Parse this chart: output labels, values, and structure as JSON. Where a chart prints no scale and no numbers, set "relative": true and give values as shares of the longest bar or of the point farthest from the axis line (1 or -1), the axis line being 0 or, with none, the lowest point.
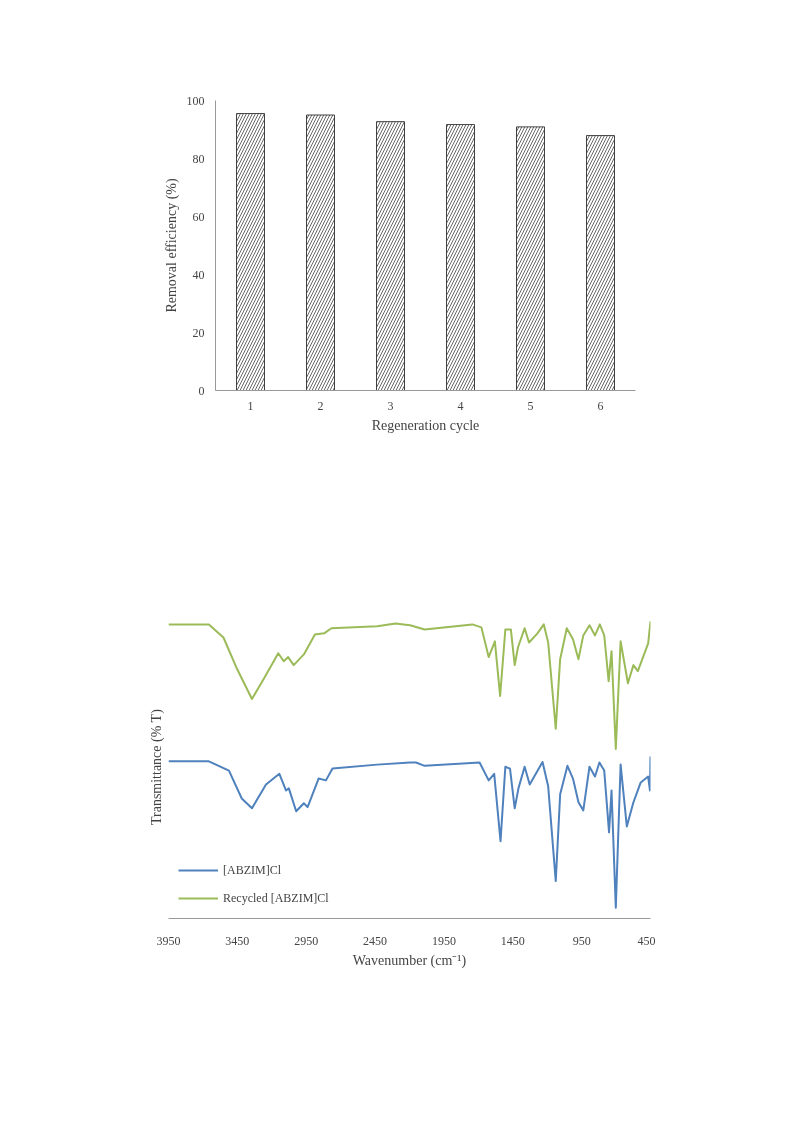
{
  "chart_data": [
    {
      "type": "bar",
      "xlabel": "Regeneration cycle",
      "ylabel": "Removal efficiency (%)",
      "categories": [
        "1",
        "2",
        "3",
        "4",
        "5",
        "6"
      ],
      "values": [
        95.5,
        95.0,
        92.7,
        91.7,
        90.9,
        87.9
      ],
      "color": "#404040",
      "ylim": [
        0,
        100
      ],
      "yticks": [
        0,
        20,
        40,
        60,
        80,
        100
      ],
      "grid": false
    },
    {
      "type": "line",
      "xlabel": "Wavenumber (cm⁻¹)",
      "ylabel": "Transmittance (% T)",
      "relative": true,
      "xlim": [
        3950,
        450
      ],
      "xticks": [
        3950,
        3450,
        2950,
        2450,
        1950,
        1450,
        950,
        450
      ],
      "tick_labels": "x",
      "grid": false,
      "legend": "bottom left",
      "series": [
        {
          "name": "[ABZIM]Cl",
          "color": "#4f81bd",
          "x": [
            3950,
            3657,
            3511,
            3418,
            3344,
            3242,
            3145,
            3097,
            3076,
            3023,
            2967,
            2940,
            2860,
            2807,
            2759,
            2435,
            2196,
            2153,
            2090,
            1691,
            1625,
            1585,
            1539,
            1504,
            1470,
            1436,
            1409,
            1364,
            1327,
            1234,
            1193,
            1138,
            1106,
            1053,
            1013,
            973,
            938,
            893,
            853,
            821,
            786,
            751,
            733,
            702,
            667,
            622,
            574,
            521,
            467,
            454,
            450
          ],
          "values": [
            0.529,
            0.529,
            0.498,
            0.404,
            0.371,
            0.451,
            0.487,
            0.431,
            0.438,
            0.361,
            0.388,
            0.375,
            0.471,
            0.465,
            0.505,
            0.518,
            0.525,
            0.525,
            0.514,
            0.525,
            0.465,
            0.487,
            0.26,
            0.511,
            0.504,
            0.371,
            0.438,
            0.511,
            0.451,
            0.527,
            0.445,
            0.126,
            0.418,
            0.514,
            0.471,
            0.391,
            0.364,
            0.511,
            0.478,
            0.525,
            0.498,
            0.29,
            0.431,
            0.036,
            0.518,
            0.31,
            0.391,
            0.458,
            0.478,
            0.431,
            0.545
          ]
        },
        {
          "name": "Recycled [ABZIM]Cl",
          "color": "#9bbb59",
          "x": [
            3950,
            3657,
            3551,
            3458,
            3344,
            3259,
            3153,
            3113,
            3081,
            3041,
            2967,
            2887,
            2820,
            2767,
            2435,
            2302,
            2196,
            2090,
            1744,
            1678,
            1625,
            1580,
            1542,
            1504,
            1464,
            1436,
            1412,
            1364,
            1332,
            1271,
            1225,
            1193,
            1138,
            1106,
            1058,
            1013,
            973,
            938,
            893,
            853,
            818,
            786,
            754,
            733,
            702,
            667,
            614,
            574,
            542,
            467,
            450
          ],
          "values": [
            0.99,
            0.99,
            0.946,
            0.846,
            0.739,
            0.806,
            0.893,
            0.866,
            0.88,
            0.853,
            0.889,
            0.956,
            0.96,
            0.977,
            0.984,
            0.993,
            0.987,
            0.973,
            0.99,
            0.98,
            0.88,
            0.933,
            0.749,
            0.973,
            0.973,
            0.853,
            0.913,
            0.977,
            0.929,
            0.96,
            0.99,
            0.929,
            0.639,
            0.873,
            0.977,
            0.94,
            0.873,
            0.953,
            0.987,
            0.953,
            0.99,
            0.953,
            0.799,
            0.9,
            0.571,
            0.933,
            0.792,
            0.853,
            0.833,
            0.926,
            1.0
          ]
        }
      ]
    }
  ]
}
